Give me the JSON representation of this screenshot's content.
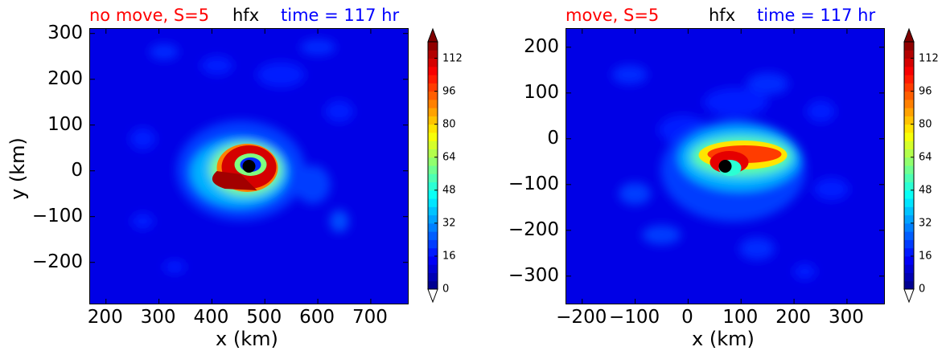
{
  "colors": {
    "red": "#ff0000",
    "blue": "#0000ff",
    "black": "#000000",
    "background": "#0000b8"
  },
  "chart_data": [
    {
      "type": "heatmap",
      "title_left": "no move, S=5",
      "title_center": "hfx",
      "title_right": "time = 117 hr",
      "xlabel": "x (km)",
      "ylabel": "y (km)",
      "xlim": [
        170,
        770
      ],
      "ylim": [
        -290,
        310
      ],
      "xticks": [
        "200",
        "300",
        "400",
        "500",
        "600",
        "700"
      ],
      "xtick_values": [
        200,
        300,
        400,
        500,
        600,
        700
      ],
      "yticks": [
        "300",
        "200",
        "100",
        "0",
        "−100",
        "−200"
      ],
      "ytick_values": [
        300,
        200,
        100,
        0,
        -100,
        -200
      ],
      "center": [
        470,
        10
      ],
      "colorbar": {
        "ticks": [
          "112",
          "96",
          "80",
          "64",
          "48",
          "32",
          "16",
          "0"
        ],
        "tick_values": [
          112,
          96,
          80,
          64,
          48,
          32,
          16,
          0
        ],
        "range": [
          0,
          120
        ],
        "extend": "both"
      }
    },
    {
      "type": "heatmap",
      "title_left": "move, S=5",
      "title_center": "hfx",
      "title_right": "time = 117 hr",
      "xlabel": "x (km)",
      "ylabel": "",
      "xlim": [
        -230,
        370
      ],
      "ylim": [
        -360,
        240
      ],
      "xticks": [
        "−200",
        "−100",
        "0",
        "100",
        "200",
        "300"
      ],
      "xtick_values": [
        -200,
        -100,
        0,
        100,
        200,
        300
      ],
      "yticks": [
        "200",
        "100",
        "0",
        "−100",
        "−200",
        "−300"
      ],
      "ytick_values": [
        200,
        100,
        0,
        -100,
        -200,
        -300
      ],
      "center": [
        70,
        -60
      ],
      "colorbar": {
        "ticks": [
          "112",
          "96",
          "80",
          "64",
          "48",
          "32",
          "16",
          "0"
        ],
        "tick_values": [
          112,
          96,
          80,
          64,
          48,
          32,
          16,
          0
        ],
        "range": [
          0,
          120
        ],
        "extend": "both"
      }
    }
  ]
}
